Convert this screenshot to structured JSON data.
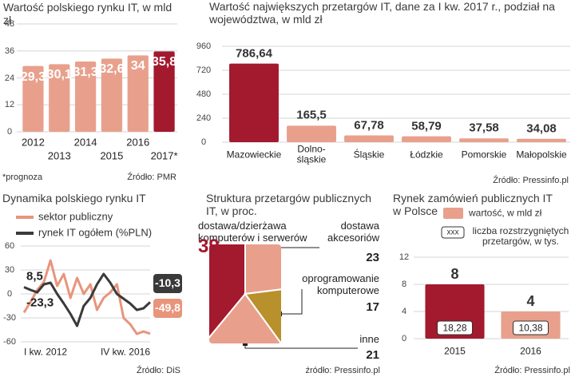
{
  "chart_data": [
    {
      "type": "bar",
      "title": "Wartość polskiego rynku IT, w mld zł",
      "categories": [
        "2012",
        "2013",
        "2014",
        "2015",
        "2016",
        "2017*"
      ],
      "values": [
        29.3,
        30.1,
        31.3,
        32.6,
        34,
        35.8
      ],
      "value_labels": [
        "29,3",
        "30,1",
        "31,3",
        "32,6",
        "34",
        "35,8"
      ],
      "colors": [
        "#e8a08c",
        "#e8a08c",
        "#e8a08c",
        "#e8a08c",
        "#e8a08c",
        "#a3192e"
      ],
      "ylim": [
        0,
        48
      ],
      "yticks": [
        0,
        12,
        24,
        36,
        48
      ],
      "grid": true,
      "note": "*prognoza",
      "source": "Źródło: PMR"
    },
    {
      "type": "bar",
      "title": "Wartość największych przetargów IT, dane za I kw. 2017 r., podział na województwa, w mld zł",
      "categories": [
        "Mazowieckie",
        "Dolno-\nśląskie",
        "Śląskie",
        "Łódzkie",
        "Pomorskie",
        "Małopolskie"
      ],
      "values": [
        786.64,
        165.5,
        67.78,
        58.79,
        37.58,
        34.08
      ],
      "value_labels": [
        "786,64",
        "165,5",
        "67,78",
        "58,79",
        "37,58",
        "34,08"
      ],
      "colors": [
        "#a3192e",
        "#e8a08c",
        "#e8a08c",
        "#e8a08c",
        "#e8a08c",
        "#e8a08c"
      ],
      "ylim": [
        0,
        960
      ],
      "yticks": [
        0,
        240,
        480,
        720,
        960
      ],
      "grid": true,
      "source": "Źródło: Pressinfo.pl"
    },
    {
      "type": "line",
      "title": "Dynamika polskiego rynku IT",
      "categories": [
        "I kw. 2012",
        null,
        null,
        null,
        null,
        null,
        null,
        null,
        null,
        null,
        null,
        null,
        null,
        null,
        null,
        null,
        null,
        null,
        null,
        "IV kw. 2016"
      ],
      "series": [
        {
          "name": "sektor publiczny",
          "color": "#e8957c",
          "values": [
            -23.3,
            -10,
            5,
            15,
            42,
            10,
            25,
            -5,
            20,
            0,
            12,
            -20,
            -5,
            2,
            12,
            -30,
            -38,
            -50,
            -47,
            -49.8
          ],
          "value_labels": [
            "-23,3",
            null,
            null,
            null,
            null,
            null,
            null,
            null,
            null,
            null,
            null,
            null,
            null,
            null,
            null,
            null,
            null,
            null,
            null,
            "-49,8"
          ]
        },
        {
          "name": "rynek IT ogółem (%PLN)",
          "color": "#3a3a3a",
          "values": [
            8.5,
            5,
            2,
            12,
            14,
            0,
            -12,
            -25,
            -40,
            -15,
            -5,
            12,
            25,
            14,
            0,
            -6,
            -12,
            -20,
            -18,
            -10.3
          ],
          "value_labels": [
            "8,5",
            null,
            null,
            null,
            null,
            null,
            null,
            null,
            null,
            null,
            null,
            null,
            null,
            null,
            null,
            null,
            null,
            null,
            null,
            "-10,3"
          ]
        }
      ],
      "ylim": [
        -60,
        60
      ],
      "yticks": [
        -60,
        -30,
        0,
        30,
        60
      ],
      "grid": true,
      "source": "Źródło: DiS"
    },
    {
      "type": "pie",
      "title": "Struktura przetargów publicznych IT, w proc.",
      "labels": [
        "dostawa/dzierżawa\nkomputerów i serwerów",
        "dostawa\nakcesoriów",
        "oprogramowanie\nkomputerowe",
        "inne"
      ],
      "values": [
        39,
        23,
        17,
        21
      ],
      "colors": [
        "#a3192e",
        "#e8a08c",
        "#b8902c",
        "#e8a08c"
      ],
      "source": "źródło: Pressinfo.pl"
    },
    {
      "type": "bar",
      "title": "Rynek zamówień publicznych IT w Polsce",
      "categories": [
        "2015",
        "2016"
      ],
      "series": [
        {
          "name": "wartość, w mld zł",
          "color": "#e8a08c",
          "colors": [
            "#a3192e",
            "#e8a08c"
          ],
          "values": [
            8,
            4
          ]
        },
        {
          "name": "liczba rozstrzygniętych przetargów, w tys.",
          "symbol": "xxx",
          "values": [
            18.28,
            10.38
          ],
          "value_labels": [
            "18,28",
            "10,38"
          ]
        }
      ],
      "ylim": [
        0,
        12
      ],
      "yticks": [
        0,
        4,
        8,
        12
      ],
      "grid": true,
      "source": "Źródło: Pressinfo.pl"
    }
  ]
}
